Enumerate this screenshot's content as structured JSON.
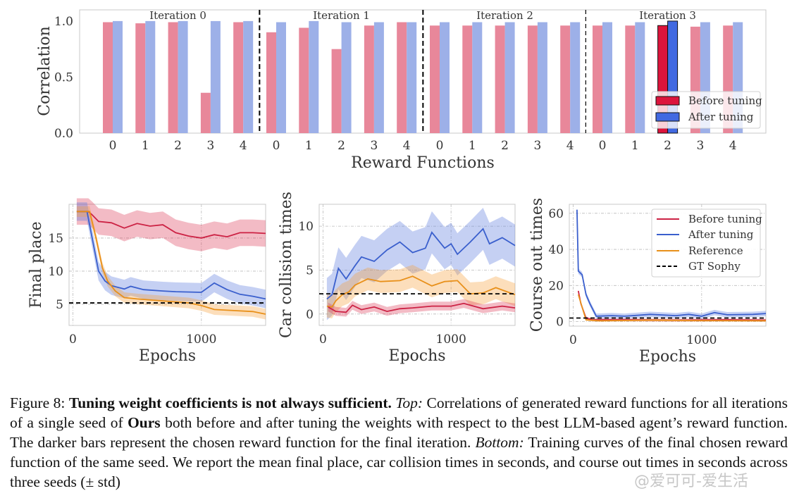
{
  "colors": {
    "before_light": "#e8879a",
    "after_light": "#9db0e8",
    "before_dark": "#dc143c",
    "after_dark": "#4169e1",
    "reference": "#e8901a",
    "gt": "#000000",
    "before_line": "#cc2244",
    "after_line": "#3a5fcd",
    "grid": "#c8c8c8"
  },
  "chart_data": [
    {
      "id": "top-bar",
      "type": "bar",
      "xlabel": "Reward Functions",
      "ylabel": "Correlation",
      "ylim": [
        0,
        1.1
      ],
      "yticks": [
        "0.0",
        "0.5",
        "1.0"
      ],
      "ytick_values": [
        0,
        0.5,
        1.0
      ],
      "legend": [
        "Before tuning",
        "After tuning"
      ],
      "legend_position": "bottom-right",
      "groups": [
        {
          "label": "Iteration 0",
          "categories": [
            "0",
            "1",
            "2",
            "3",
            "4"
          ],
          "before": [
            0.99,
            0.98,
            0.99,
            0.36,
            0.99
          ],
          "after": [
            1.0,
            1.0,
            1.0,
            1.0,
            1.0
          ],
          "chosen": null
        },
        {
          "label": "Iteration 1",
          "categories": [
            "0",
            "1",
            "2",
            "3",
            "4"
          ],
          "before": [
            0.9,
            0.94,
            0.75,
            0.96,
            0.99
          ],
          "after": [
            0.99,
            1.0,
            0.99,
            0.99,
            0.99
          ],
          "chosen": null
        },
        {
          "label": "Iteration 2",
          "categories": [
            "0",
            "1",
            "2",
            "3",
            "4"
          ],
          "before": [
            0.96,
            0.96,
            0.96,
            0.96,
            0.96
          ],
          "after": [
            0.99,
            0.99,
            0.99,
            0.99,
            0.99
          ],
          "chosen": null
        },
        {
          "label": "Iteration 3",
          "categories": [
            "0",
            "1",
            "2",
            "3",
            "4"
          ],
          "before": [
            0.96,
            0.96,
            0.96,
            0.95,
            0.96
          ],
          "after": [
            0.99,
            0.99,
            1.0,
            0.99,
            0.99
          ],
          "chosen": 2
        }
      ]
    },
    {
      "id": "final-place",
      "type": "line",
      "xlabel": "Epochs",
      "ylabel": "Final place",
      "xlim": [
        -30,
        1500
      ],
      "ylim": [
        1.8,
        20.1
      ],
      "xticks": [
        0,
        1000
      ],
      "yticks": [
        5,
        10,
        15
      ],
      "series": [
        {
          "name": "Before tuning",
          "key": "before",
          "x": [
            30,
            120,
            150,
            200,
            300,
            400,
            500,
            600,
            700,
            800,
            900,
            1000,
            1100,
            1200,
            1300,
            1400,
            1500
          ],
          "y": [
            19,
            19,
            18.5,
            17.5,
            17.3,
            16.5,
            17.2,
            16.8,
            17,
            15.8,
            15.3,
            15,
            15.5,
            15.2,
            15.8,
            15.8,
            15.7
          ],
          "band": 2.0
        },
        {
          "name": "After tuning",
          "key": "after",
          "x": [
            30,
            110,
            150,
            200,
            250,
            300,
            400,
            450,
            550,
            700,
            800,
            1000,
            1100,
            1200,
            1300,
            1400,
            1500
          ],
          "y": [
            19,
            19,
            15,
            10,
            8.5,
            7.8,
            7.3,
            7.7,
            7.2,
            7,
            6.9,
            6.8,
            8.2,
            7.2,
            6.5,
            6.2,
            5.8
          ],
          "band": 1.4
        },
        {
          "name": "Reference",
          "key": "reference",
          "x": [
            30,
            130,
            180,
            230,
            270,
            330,
            400,
            500,
            700,
            900,
            1000,
            1100,
            1200,
            1400,
            1500
          ],
          "y": [
            19,
            19,
            15,
            10.5,
            8.5,
            7,
            6,
            5.8,
            5.5,
            5.2,
            4.8,
            4.2,
            4.1,
            3.9,
            3.5
          ],
          "band": 0.8
        }
      ],
      "hline": {
        "name": "GT Sophy",
        "y": 5.2
      }
    },
    {
      "id": "car-collision",
      "type": "line",
      "xlabel": "Epochs",
      "ylabel": "Car collision times",
      "xlim": [
        -30,
        1500
      ],
      "ylim": [
        -1.3,
        12.5
      ],
      "xticks": [
        0,
        1000
      ],
      "yticks": [
        0,
        5,
        10
      ],
      "series": [
        {
          "name": "After tuning",
          "key": "after",
          "x": [
            30,
            70,
            120,
            180,
            250,
            300,
            400,
            500,
            600,
            700,
            800,
            850,
            950,
            1000,
            1050,
            1150,
            1250,
            1300,
            1400,
            1500
          ],
          "y": [
            1.7,
            2.2,
            5.2,
            4,
            5.5,
            6.5,
            6,
            7.3,
            8.2,
            7,
            7.5,
            9.3,
            7.5,
            8,
            6.8,
            8.2,
            9.7,
            8,
            8.7,
            7.8
          ],
          "band": 2.4
        },
        {
          "name": "Reference",
          "key": "reference",
          "x": [
            30,
            70,
            100,
            150,
            200,
            250,
            350,
            450,
            600,
            700,
            850,
            950,
            1050,
            1150,
            1250,
            1350,
            1500
          ],
          "y": [
            0.9,
            0.8,
            1.5,
            2.2,
            2.5,
            3.3,
            4,
            3.7,
            3.8,
            4.3,
            3.2,
            3.7,
            3.8,
            2.3,
            2.4,
            3,
            2.2
          ],
          "band": 1.3
        },
        {
          "name": "Before tuning",
          "key": "before",
          "x": [
            40,
            100,
            180,
            230,
            300,
            400,
            500,
            600,
            700,
            850,
            1000,
            1100,
            1250,
            1400,
            1500
          ],
          "y": [
            0.8,
            0.3,
            0.2,
            1,
            0.5,
            0.8,
            0.3,
            0.6,
            0.7,
            0.9,
            0.9,
            1.2,
            0.6,
            0.9,
            0.7
          ],
          "band": 0.5
        }
      ],
      "hline": {
        "name": "GT Sophy",
        "y": 2.3
      }
    },
    {
      "id": "course-out",
      "type": "line",
      "xlabel": "Epochs",
      "ylabel": "Course out times",
      "xlim": [
        -30,
        1500
      ],
      "ylim": [
        -2.5,
        65
      ],
      "xticks": [
        0,
        1000
      ],
      "yticks": [
        0,
        20,
        40,
        60
      ],
      "legend": [
        "Before tuning",
        "After tuning",
        "Reference",
        "GT Sophy"
      ],
      "legend_position": "top-right",
      "series": [
        {
          "name": "After tuning",
          "key": "after",
          "x": [
            30,
            40,
            70,
            100,
            130,
            180,
            300,
            400,
            600,
            800,
            900,
            1000,
            1100,
            1200,
            1400,
            1500
          ],
          "y": [
            62,
            28,
            26,
            15,
            10,
            3,
            3.3,
            3,
            4,
            3.3,
            4,
            3,
            5,
            3.8,
            4,
            4.5
          ],
          "band": 1.5
        },
        {
          "name": "Before tuning",
          "key": "before",
          "x": [
            40,
            60,
            100,
            150,
            400,
            800,
            1200,
            1500
          ],
          "y": [
            17,
            10,
            2,
            1,
            1,
            0.8,
            1,
            0.8
          ],
          "band": 0.8
        },
        {
          "name": "Reference",
          "key": "reference",
          "x": [
            40,
            70,
            100,
            200,
            600,
            1000,
            1500
          ],
          "y": [
            15,
            8,
            1,
            0.5,
            0.8,
            0.6,
            0.5
          ],
          "band": 0.6
        }
      ],
      "hline": {
        "name": "GT Sophy",
        "y": 2
      }
    }
  ],
  "caption": {
    "figure_label": "Figure 8:",
    "bold_title": "Tuning weight coefficients is not always sufficient.",
    "top_label": "Top:",
    "top_text_1": "Correlations of generated reward functions for all iterations of a single seed of",
    "ours": "Ours",
    "top_text_2": "both before and after tuning the weights with respect to the best LLM-based agent’s reward function. The darker bars represent the chosen reward function for the final iteration.",
    "bottom_label": "Bottom:",
    "bottom_text": "Training curves of the final chosen reward function of the same seed. We report the mean final place, car collision times in seconds, and course out times in seconds across three seeds (± std)"
  },
  "watermark": "@爱可可-爱生活"
}
